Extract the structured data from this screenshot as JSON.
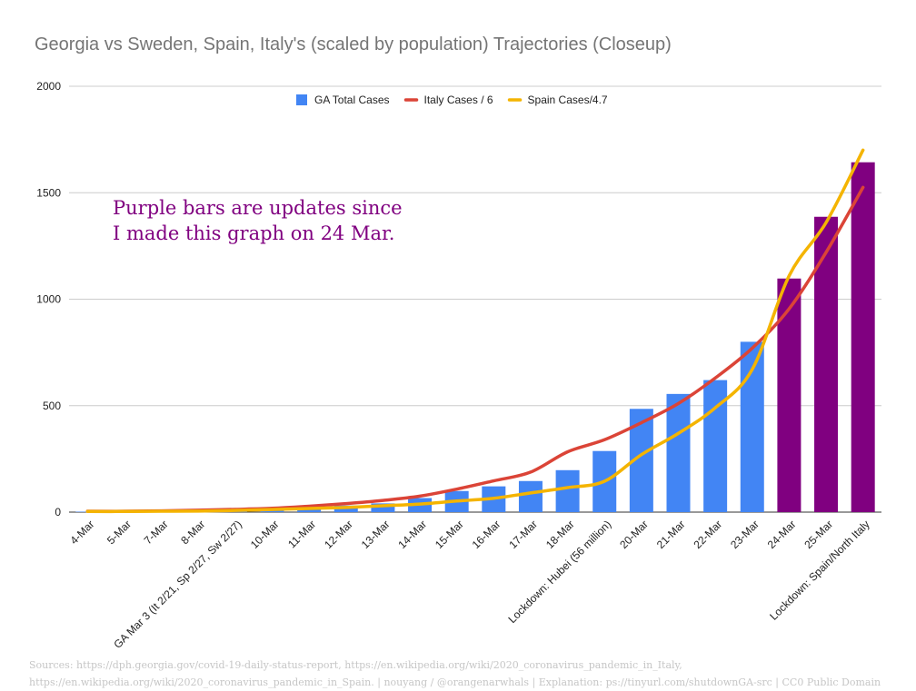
{
  "chart_data": {
    "type": "bar",
    "title": "Georgia vs Sweden, Spain, Italy's (scaled by population) Trajectories (Closeup)",
    "xlabel": "",
    "ylabel": "",
    "ylim": [
      0,
      2000
    ],
    "yticks": [
      0,
      500,
      1000,
      1500,
      2000
    ],
    "grid": true,
    "legend_position": "top",
    "categories": [
      "4-Mar",
      "5-Mar",
      "7-Mar",
      "8-Mar",
      "GA Mar 3 (It 2/21, Sp 2/27, Sw 2/27)",
      "10-Mar",
      "11-Mar",
      "12-Mar",
      "13-Mar",
      "14-Mar",
      "15-Mar",
      "16-Mar",
      "17-Mar",
      "18-Mar",
      "Lockdown: Hubei (56 million)",
      "20-Mar",
      "21-Mar",
      "22-Mar",
      "23-Mar",
      "24-Mar",
      "25-Mar",
      "Lockdown: Spain/North Italy"
    ],
    "series": [
      {
        "name": "GA Total Cases",
        "type": "bar",
        "color": "#4285f4",
        "highlight_color": "#800080",
        "highlight_from_index": 19,
        "values": [
          2,
          2,
          6,
          7,
          17,
          17,
          22,
          31,
          41,
          66,
          99,
          121,
          146,
          197,
          287,
          485,
          555,
          620,
          800,
          1097,
          1387,
          1643
        ]
      },
      {
        "name": "Italy Cases / 6",
        "type": "line",
        "color": "#db4437",
        "values": [
          4,
          4,
          6,
          9,
          13,
          18,
          28,
          40,
          55,
          75,
          108,
          147,
          188,
          283,
          340,
          420,
          510,
          630,
          770,
          955,
          1220,
          1525
        ]
      },
      {
        "name": "Spain Cases/4.7",
        "type": "line",
        "color": "#f4b400",
        "values": [
          3,
          3,
          4,
          5,
          8,
          12,
          17,
          22,
          30,
          38,
          52,
          65,
          90,
          115,
          145,
          270,
          370,
          490,
          670,
          1110,
          1360,
          1700
        ]
      }
    ],
    "annotations": [
      "Purple bars are updates since",
      "I made this graph on 24 Mar."
    ]
  },
  "footer": {
    "line1": "Sources: https://dph.georgia.gov/covid-19-daily-status-report, https://en.wikipedia.org/wiki/2020_coronavirus_pandemic_in_Italy,",
    "line2": "https://en.wikipedia.org/wiki/2020_coronavirus_pandemic_in_Spain.  | nouyang / @orangenarwhals | Explanation: ps://tinyurl.com/shutdownGA-src | CC0 Public Domain"
  }
}
